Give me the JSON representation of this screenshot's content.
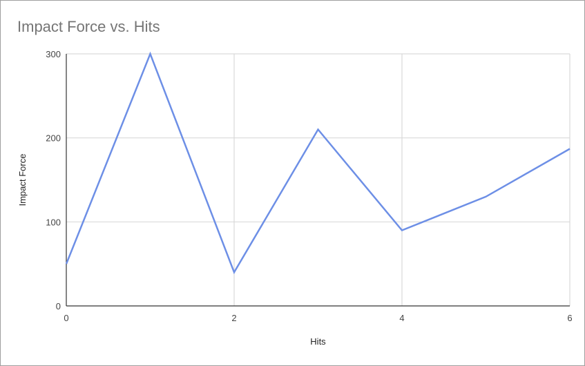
{
  "chart_data": {
    "type": "line",
    "title": "Impact Force vs. Hits",
    "xlabel": "Hits",
    "ylabel": "Impact Force",
    "xlim": [
      0,
      6
    ],
    "ylim": [
      0,
      300
    ],
    "x_ticks": [
      "0",
      "2",
      "4",
      "6"
    ],
    "y_ticks": [
      "0",
      "100",
      "200",
      "300"
    ],
    "grid": true,
    "legend": "none",
    "series": [
      {
        "color": "#6d8fe6",
        "points": [
          {
            "x": 0,
            "y": 50
          },
          {
            "x": 1,
            "y": 300
          },
          {
            "x": 2,
            "y": 40
          },
          {
            "x": 3,
            "y": 210
          },
          {
            "x": 4,
            "y": 90
          },
          {
            "x": 5,
            "y": 130
          },
          {
            "x": 6,
            "y": 187
          }
        ]
      }
    ]
  }
}
